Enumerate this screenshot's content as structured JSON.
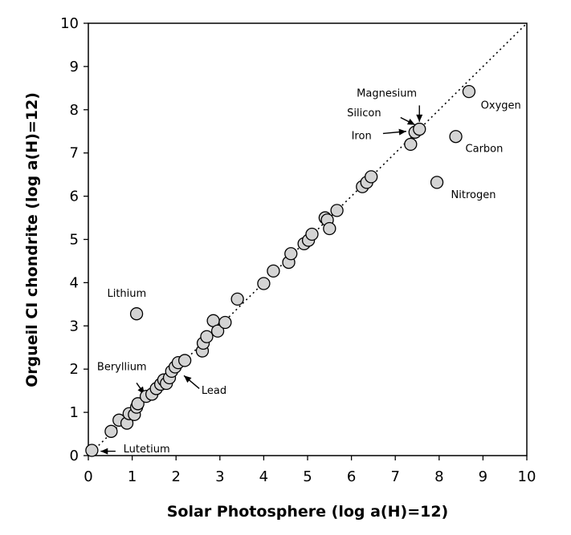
{
  "chart_data": {
    "type": "scatter",
    "xlabel": "Solar Photosphere (log a(H)=12)",
    "ylabel": "Orgueil CI chondrite (log a(H)=12)",
    "xlim": [
      0,
      10
    ],
    "ylim": [
      0,
      10
    ],
    "x_ticks": [
      "0",
      "1",
      "2",
      "3",
      "4",
      "5",
      "6",
      "7",
      "8",
      "9",
      "10"
    ],
    "y_ticks": [
      "0",
      "1",
      "2",
      "3",
      "4",
      "5",
      "6",
      "7",
      "8",
      "9",
      "10"
    ],
    "grid": false,
    "reference_line": "y = x (dotted)",
    "points": [
      {
        "x": 0.08,
        "y": 0.12
      },
      {
        "x": 0.52,
        "y": 0.56
      },
      {
        "x": 0.7,
        "y": 0.82
      },
      {
        "x": 0.88,
        "y": 0.75
      },
      {
        "x": 0.93,
        "y": 0.97
      },
      {
        "x": 1.05,
        "y": 0.95
      },
      {
        "x": 1.1,
        "y": 1.12
      },
      {
        "x": 1.13,
        "y": 1.2
      },
      {
        "x": 1.32,
        "y": 1.37
      },
      {
        "x": 1.45,
        "y": 1.42
      },
      {
        "x": 1.55,
        "y": 1.55
      },
      {
        "x": 1.65,
        "y": 1.65
      },
      {
        "x": 1.72,
        "y": 1.75
      },
      {
        "x": 1.78,
        "y": 1.67
      },
      {
        "x": 1.85,
        "y": 1.8
      },
      {
        "x": 1.9,
        "y": 1.95
      },
      {
        "x": 1.98,
        "y": 2.05
      },
      {
        "x": 2.05,
        "y": 2.15
      },
      {
        "x": 2.2,
        "y": 2.2
      },
      {
        "x": 2.6,
        "y": 2.42
      },
      {
        "x": 2.62,
        "y": 2.6
      },
      {
        "x": 2.7,
        "y": 2.75
      },
      {
        "x": 2.85,
        "y": 3.12
      },
      {
        "x": 2.95,
        "y": 2.88
      },
      {
        "x": 3.12,
        "y": 3.08
      },
      {
        "x": 3.4,
        "y": 3.62
      },
      {
        "x": 4.0,
        "y": 3.98
      },
      {
        "x": 4.22,
        "y": 4.27
      },
      {
        "x": 4.57,
        "y": 4.47
      },
      {
        "x": 4.62,
        "y": 4.67
      },
      {
        "x": 4.92,
        "y": 4.9
      },
      {
        "x": 5.02,
        "y": 4.98
      },
      {
        "x": 5.1,
        "y": 5.12
      },
      {
        "x": 5.4,
        "y": 5.5
      },
      {
        "x": 5.45,
        "y": 5.45
      },
      {
        "x": 5.5,
        "y": 5.25
      },
      {
        "x": 5.67,
        "y": 5.67
      },
      {
        "x": 6.25,
        "y": 6.22
      },
      {
        "x": 6.35,
        "y": 6.32
      },
      {
        "x": 6.45,
        "y": 6.45
      },
      {
        "x": 1.1,
        "y": 3.28
      },
      {
        "x": 7.35,
        "y": 7.2
      },
      {
        "x": 7.45,
        "y": 7.48
      },
      {
        "x": 7.55,
        "y": 7.55
      },
      {
        "x": 8.38,
        "y": 7.38
      },
      {
        "x": 7.95,
        "y": 6.32
      },
      {
        "x": 8.68,
        "y": 8.42
      }
    ],
    "annotations": [
      {
        "text": "Lithium",
        "x": 0.43,
        "y": 3.67,
        "anchor": "start"
      },
      {
        "text": "Beryllium",
        "x": 0.2,
        "y": 1.98,
        "anchor": "start"
      },
      {
        "text": "Lead",
        "x": 2.58,
        "y": 1.43,
        "anchor": "start"
      },
      {
        "text": "Lutetium",
        "x": 0.8,
        "y": 0.07,
        "anchor": "start"
      },
      {
        "text": "Magnesium",
        "x": 6.12,
        "y": 8.3,
        "anchor": "start"
      },
      {
        "text": "Silicon",
        "x": 5.9,
        "y": 7.85,
        "anchor": "start"
      },
      {
        "text": "Iron",
        "x": 6.0,
        "y": 7.32,
        "anchor": "start"
      },
      {
        "text": "Oxygen",
        "x": 8.95,
        "y": 8.02,
        "anchor": "start"
      },
      {
        "text": "Carbon",
        "x": 8.6,
        "y": 7.02,
        "anchor": "start"
      },
      {
        "text": "Nitrogen",
        "x": 8.27,
        "y": 5.96,
        "anchor": "start"
      }
    ],
    "arrows": [
      {
        "from": [
          1.1,
          1.68
        ],
        "to": [
          1.28,
          1.42
        ]
      },
      {
        "from": [
          2.53,
          1.55
        ],
        "to": [
          2.18,
          1.85
        ]
      },
      {
        "from": [
          0.62,
          0.1
        ],
        "to": [
          0.28,
          0.1
        ]
      },
      {
        "from": [
          7.55,
          8.1
        ],
        "to": [
          7.55,
          7.72
        ]
      },
      {
        "from": [
          7.12,
          7.82
        ],
        "to": [
          7.45,
          7.65
        ]
      },
      {
        "from": [
          6.72,
          7.45
        ],
        "to": [
          7.25,
          7.5
        ]
      }
    ]
  }
}
